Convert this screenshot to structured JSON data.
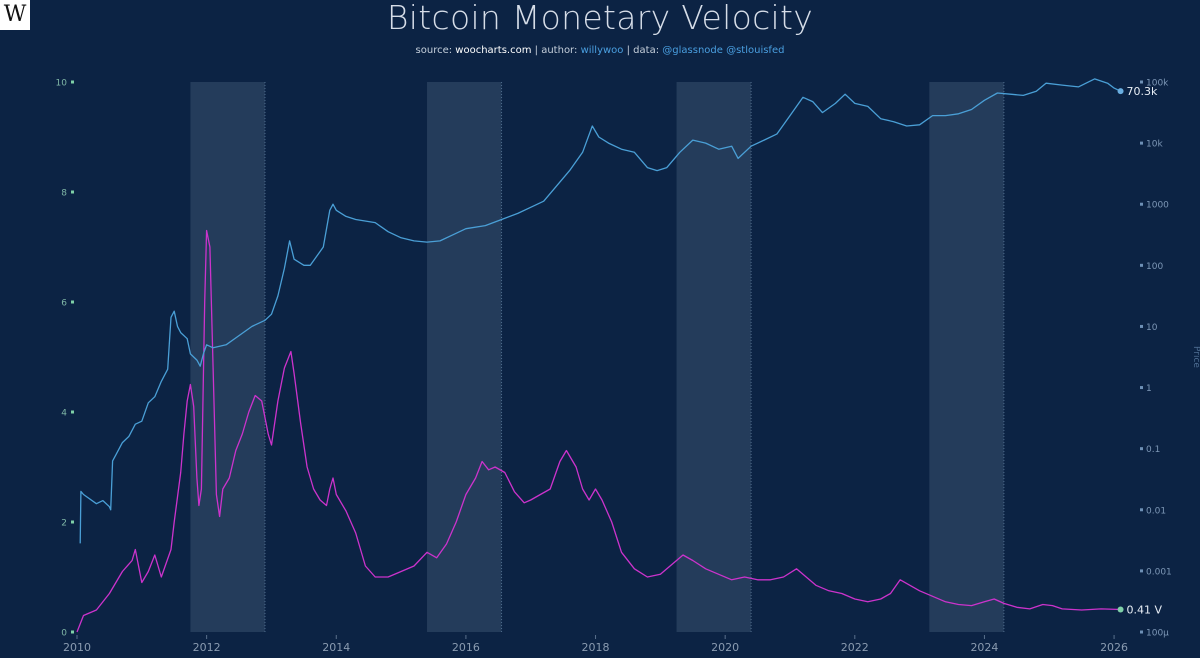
{
  "header": {
    "logo_letter": "W",
    "title": "Bitcoin Monetary Velocity",
    "source_label": "source:",
    "source_site": "woocharts.com",
    "sep1": "|",
    "author_label": "author:",
    "author": "willywoo",
    "sep2": "|",
    "data_label": "data:",
    "data_sources": "@glassnode @stlouisfed"
  },
  "chart_data": {
    "type": "line",
    "title": "Bitcoin Monetary Velocity",
    "x_ticks": [
      "2010",
      "2012",
      "2014",
      "2016",
      "2018",
      "2020",
      "2022",
      "2024",
      "2026"
    ],
    "x_range": [
      2010.0,
      2026.4
    ],
    "y_left": {
      "label": "",
      "range": [
        0,
        10
      ],
      "ticks": [
        "0",
        "2",
        "4",
        "6",
        "8",
        "10"
      ]
    },
    "y_right": {
      "label": "Price",
      "scale": "log",
      "ticks": [
        "100µ",
        "0.001",
        "0.01",
        "0.1",
        "1",
        "10",
        "100",
        "1000",
        "10k",
        "100k"
      ],
      "tick_exponents": [
        -4,
        -3,
        -2,
        -1,
        0,
        1,
        2,
        3,
        4,
        5
      ]
    },
    "shaded_periods": [
      [
        2011.75,
        2012.9
      ],
      [
        2015.4,
        2016.55
      ],
      [
        2019.25,
        2020.4
      ],
      [
        2023.15,
        2024.3
      ]
    ],
    "series": [
      {
        "name": "Velocity",
        "axis": "left",
        "color": "#cc33cc",
        "end_label": "0.41 V",
        "points": [
          [
            2010.0,
            0.0
          ],
          [
            2010.1,
            0.3
          ],
          [
            2010.3,
            0.4
          ],
          [
            2010.5,
            0.7
          ],
          [
            2010.7,
            1.1
          ],
          [
            2010.85,
            1.3
          ],
          [
            2010.9,
            1.5
          ],
          [
            2011.0,
            0.9
          ],
          [
            2011.1,
            1.1
          ],
          [
            2011.2,
            1.4
          ],
          [
            2011.3,
            1.0
          ],
          [
            2011.45,
            1.5
          ],
          [
            2011.5,
            2.0
          ],
          [
            2011.6,
            2.9
          ],
          [
            2011.65,
            3.6
          ],
          [
            2011.7,
            4.2
          ],
          [
            2011.75,
            4.5
          ],
          [
            2011.8,
            4.1
          ],
          [
            2011.85,
            2.8
          ],
          [
            2011.88,
            2.3
          ],
          [
            2011.92,
            2.6
          ],
          [
            2011.97,
            6.0
          ],
          [
            2012.0,
            7.3
          ],
          [
            2012.05,
            7.0
          ],
          [
            2012.1,
            4.8
          ],
          [
            2012.15,
            2.5
          ],
          [
            2012.2,
            2.1
          ],
          [
            2012.25,
            2.6
          ],
          [
            2012.35,
            2.8
          ],
          [
            2012.45,
            3.3
          ],
          [
            2012.55,
            3.6
          ],
          [
            2012.65,
            4.0
          ],
          [
            2012.75,
            4.3
          ],
          [
            2012.85,
            4.2
          ],
          [
            2012.95,
            3.6
          ],
          [
            2013.0,
            3.4
          ],
          [
            2013.1,
            4.2
          ],
          [
            2013.2,
            4.8
          ],
          [
            2013.3,
            5.1
          ],
          [
            2013.35,
            4.7
          ],
          [
            2013.45,
            3.8
          ],
          [
            2013.55,
            3.0
          ],
          [
            2013.65,
            2.6
          ],
          [
            2013.75,
            2.4
          ],
          [
            2013.85,
            2.3
          ],
          [
            2013.9,
            2.6
          ],
          [
            2013.95,
            2.8
          ],
          [
            2014.0,
            2.5
          ],
          [
            2014.15,
            2.2
          ],
          [
            2014.3,
            1.8
          ],
          [
            2014.45,
            1.2
          ],
          [
            2014.6,
            1.0
          ],
          [
            2014.8,
            1.0
          ],
          [
            2015.0,
            1.1
          ],
          [
            2015.2,
            1.2
          ],
          [
            2015.4,
            1.45
          ],
          [
            2015.55,
            1.35
          ],
          [
            2015.7,
            1.6
          ],
          [
            2015.85,
            2.0
          ],
          [
            2016.0,
            2.5
          ],
          [
            2016.15,
            2.8
          ],
          [
            2016.25,
            3.1
          ],
          [
            2016.35,
            2.95
          ],
          [
            2016.45,
            3.0
          ],
          [
            2016.6,
            2.9
          ],
          [
            2016.75,
            2.55
          ],
          [
            2016.9,
            2.35
          ],
          [
            2017.0,
            2.4
          ],
          [
            2017.15,
            2.5
          ],
          [
            2017.3,
            2.6
          ],
          [
            2017.45,
            3.1
          ],
          [
            2017.55,
            3.3
          ],
          [
            2017.7,
            3.0
          ],
          [
            2017.8,
            2.6
          ],
          [
            2017.9,
            2.4
          ],
          [
            2018.0,
            2.6
          ],
          [
            2018.1,
            2.4
          ],
          [
            2018.25,
            2.0
          ],
          [
            2018.4,
            1.45
          ],
          [
            2018.6,
            1.15
          ],
          [
            2018.8,
            1.0
          ],
          [
            2019.0,
            1.05
          ],
          [
            2019.2,
            1.25
          ],
          [
            2019.35,
            1.4
          ],
          [
            2019.5,
            1.3
          ],
          [
            2019.7,
            1.15
          ],
          [
            2019.9,
            1.05
          ],
          [
            2020.1,
            0.95
          ],
          [
            2020.3,
            1.0
          ],
          [
            2020.5,
            0.95
          ],
          [
            2020.7,
            0.95
          ],
          [
            2020.9,
            1.0
          ],
          [
            2021.1,
            1.15
          ],
          [
            2021.25,
            1.0
          ],
          [
            2021.4,
            0.85
          ],
          [
            2021.6,
            0.75
          ],
          [
            2021.8,
            0.7
          ],
          [
            2022.0,
            0.6
          ],
          [
            2022.2,
            0.55
          ],
          [
            2022.4,
            0.6
          ],
          [
            2022.55,
            0.7
          ],
          [
            2022.7,
            0.95
          ],
          [
            2022.85,
            0.85
          ],
          [
            2023.0,
            0.75
          ],
          [
            2023.2,
            0.65
          ],
          [
            2023.4,
            0.55
          ],
          [
            2023.6,
            0.5
          ],
          [
            2023.8,
            0.48
          ],
          [
            2024.0,
            0.55
          ],
          [
            2024.15,
            0.6
          ],
          [
            2024.3,
            0.52
          ],
          [
            2024.5,
            0.45
          ],
          [
            2024.7,
            0.42
          ],
          [
            2024.9,
            0.5
          ],
          [
            2025.05,
            0.48
          ],
          [
            2025.2,
            0.42
          ],
          [
            2025.5,
            0.4
          ],
          [
            2025.8,
            0.42
          ],
          [
            2026.1,
            0.41
          ]
        ]
      },
      {
        "name": "Price",
        "axis": "right",
        "color": "#4a9fd6",
        "end_label": "70.3k",
        "points": [
          [
            2010.05,
            -2.55
          ],
          [
            2010.06,
            -1.7
          ],
          [
            2010.1,
            -1.75
          ],
          [
            2010.3,
            -1.9
          ],
          [
            2010.4,
            -1.85
          ],
          [
            2010.5,
            -1.95
          ],
          [
            2010.52,
            -2.0
          ],
          [
            2010.55,
            -1.2
          ],
          [
            2010.6,
            -1.1
          ],
          [
            2010.7,
            -0.9
          ],
          [
            2010.8,
            -0.8
          ],
          [
            2010.9,
            -0.6
          ],
          [
            2011.0,
            -0.55
          ],
          [
            2011.1,
            -0.25
          ],
          [
            2011.2,
            -0.15
          ],
          [
            2011.3,
            0.1
          ],
          [
            2011.4,
            0.3
          ],
          [
            2011.45,
            1.15
          ],
          [
            2011.5,
            1.25
          ],
          [
            2011.55,
            1.0
          ],
          [
            2011.6,
            0.9
          ],
          [
            2011.7,
            0.8
          ],
          [
            2011.75,
            0.55
          ],
          [
            2011.85,
            0.45
          ],
          [
            2011.9,
            0.35
          ],
          [
            2011.95,
            0.55
          ],
          [
            2012.0,
            0.7
          ],
          [
            2012.1,
            0.65
          ],
          [
            2012.3,
            0.7
          ],
          [
            2012.5,
            0.85
          ],
          [
            2012.7,
            1.0
          ],
          [
            2012.9,
            1.1
          ],
          [
            2013.0,
            1.2
          ],
          [
            2013.1,
            1.5
          ],
          [
            2013.2,
            1.95
          ],
          [
            2013.28,
            2.4
          ],
          [
            2013.35,
            2.1
          ],
          [
            2013.5,
            2.0
          ],
          [
            2013.6,
            2.0
          ],
          [
            2013.8,
            2.3
          ],
          [
            2013.9,
            2.9
          ],
          [
            2013.95,
            3.0
          ],
          [
            2014.0,
            2.9
          ],
          [
            2014.15,
            2.8
          ],
          [
            2014.3,
            2.75
          ],
          [
            2014.6,
            2.7
          ],
          [
            2014.8,
            2.55
          ],
          [
            2015.0,
            2.45
          ],
          [
            2015.2,
            2.4
          ],
          [
            2015.4,
            2.38
          ],
          [
            2015.6,
            2.4
          ],
          [
            2015.8,
            2.5
          ],
          [
            2016.0,
            2.6
          ],
          [
            2016.3,
            2.65
          ],
          [
            2016.55,
            2.75
          ],
          [
            2016.8,
            2.85
          ],
          [
            2017.0,
            2.95
          ],
          [
            2017.2,
            3.05
          ],
          [
            2017.4,
            3.3
          ],
          [
            2017.6,
            3.55
          ],
          [
            2017.8,
            3.85
          ],
          [
            2017.95,
            4.28
          ],
          [
            2018.05,
            4.1
          ],
          [
            2018.2,
            4.0
          ],
          [
            2018.4,
            3.9
          ],
          [
            2018.6,
            3.85
          ],
          [
            2018.8,
            3.6
          ],
          [
            2018.95,
            3.55
          ],
          [
            2019.1,
            3.6
          ],
          [
            2019.3,
            3.85
          ],
          [
            2019.5,
            4.05
          ],
          [
            2019.7,
            4.0
          ],
          [
            2019.9,
            3.9
          ],
          [
            2020.1,
            3.95
          ],
          [
            2020.2,
            3.75
          ],
          [
            2020.4,
            3.95
          ],
          [
            2020.6,
            4.05
          ],
          [
            2020.8,
            4.15
          ],
          [
            2021.0,
            4.45
          ],
          [
            2021.2,
            4.75
          ],
          [
            2021.35,
            4.68
          ],
          [
            2021.5,
            4.5
          ],
          [
            2021.7,
            4.65
          ],
          [
            2021.85,
            4.8
          ],
          [
            2022.0,
            4.65
          ],
          [
            2022.2,
            4.6
          ],
          [
            2022.4,
            4.4
          ],
          [
            2022.6,
            4.35
          ],
          [
            2022.8,
            4.28
          ],
          [
            2023.0,
            4.3
          ],
          [
            2023.2,
            4.45
          ],
          [
            2023.4,
            4.45
          ],
          [
            2023.6,
            4.48
          ],
          [
            2023.8,
            4.55
          ],
          [
            2024.0,
            4.7
          ],
          [
            2024.2,
            4.82
          ],
          [
            2024.4,
            4.8
          ],
          [
            2024.6,
            4.78
          ],
          [
            2024.8,
            4.85
          ],
          [
            2024.95,
            4.98
          ],
          [
            2025.2,
            4.95
          ],
          [
            2025.45,
            4.92
          ],
          [
            2025.7,
            5.05
          ],
          [
            2025.9,
            4.98
          ],
          [
            2026.0,
            4.9
          ],
          [
            2026.1,
            4.85
          ]
        ]
      }
    ]
  }
}
